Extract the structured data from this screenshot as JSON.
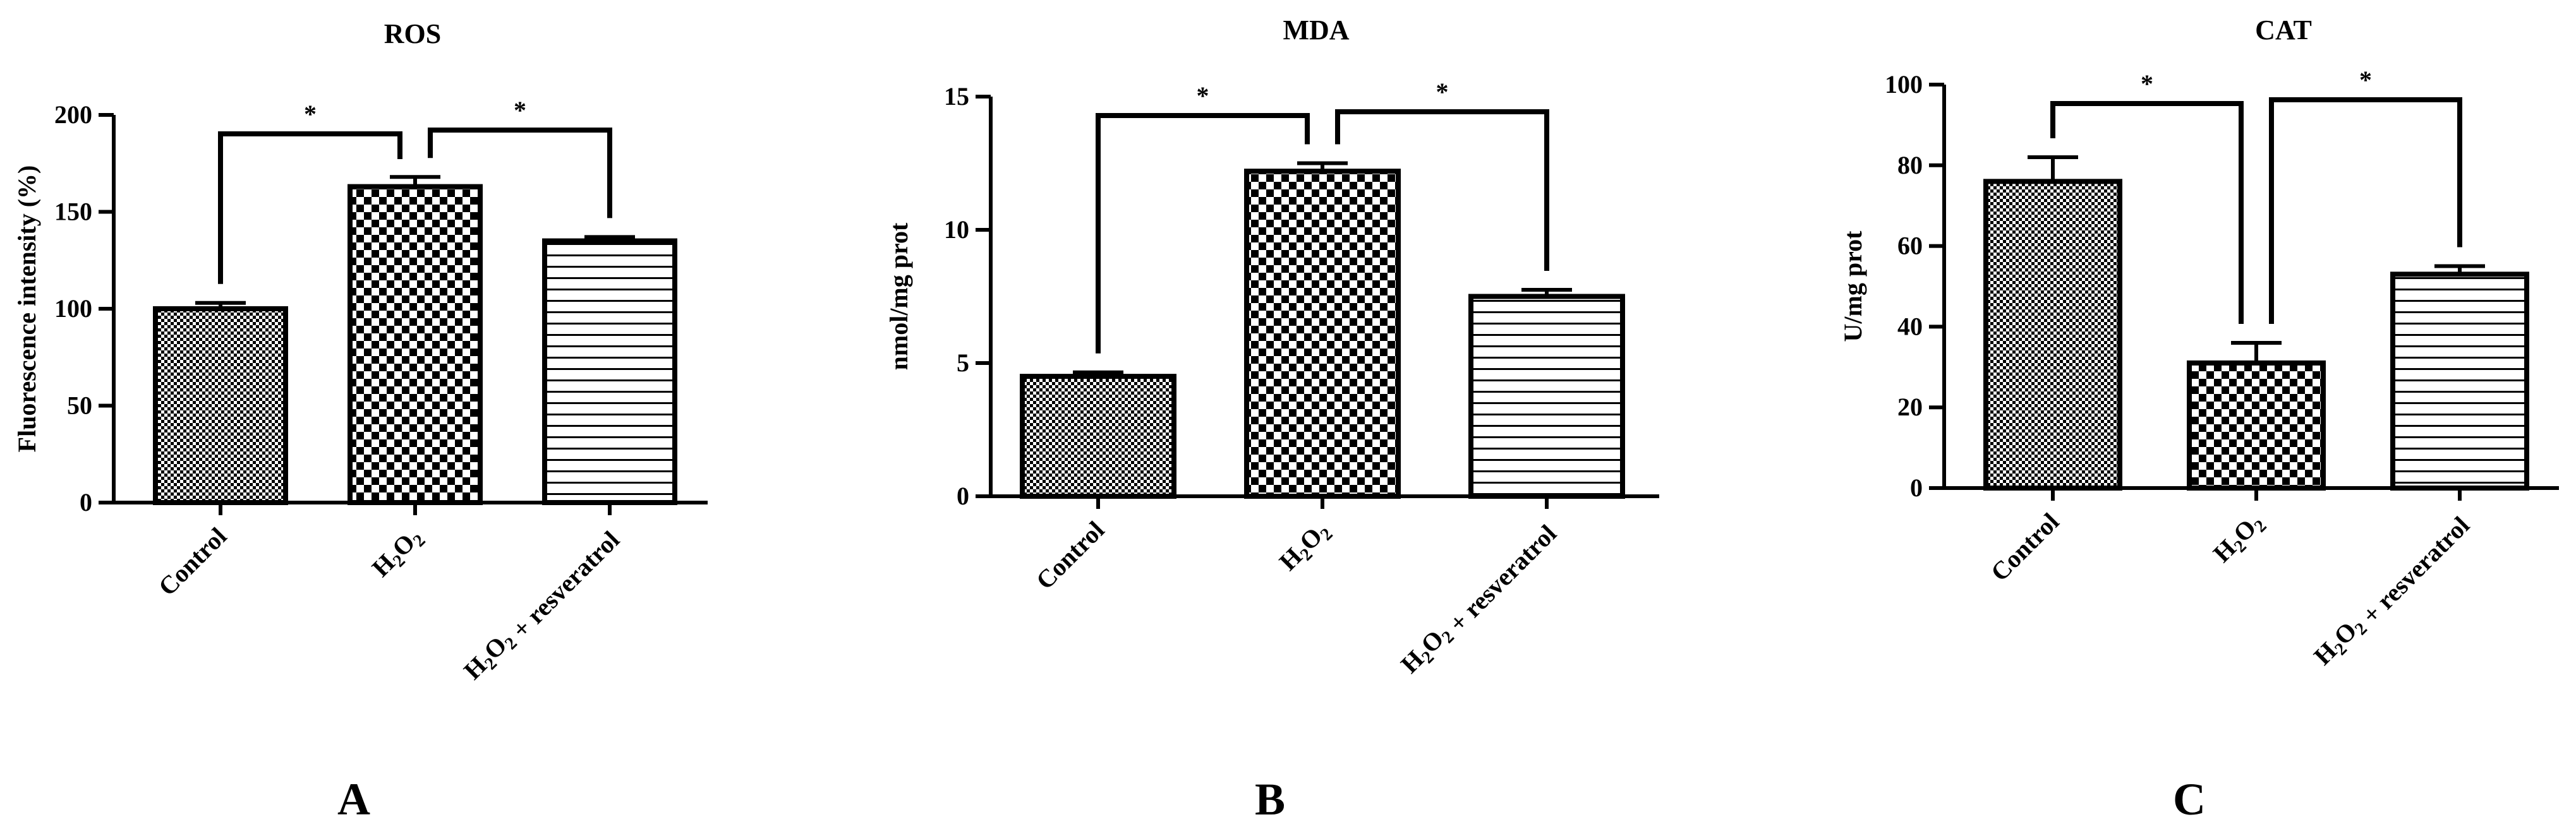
{
  "chart_data": [
    {
      "type": "bar",
      "panel_label": "A",
      "title": "ROS",
      "ylabel": "Fluorescence intensity (%)",
      "xlabel": "",
      "categories": [
        "Control",
        "H2O2",
        "H2O2 + resveratrol"
      ],
      "values": [
        100,
        163,
        135
      ],
      "errors": [
        3,
        5,
        2
      ],
      "ylim": [
        0,
        200
      ],
      "yticks": [
        0,
        50,
        100,
        150,
        200
      ],
      "patterns": [
        "fine-checker",
        "coarse-checker",
        "horizontal-lines"
      ],
      "significance": [
        {
          "from": 0,
          "to": 1,
          "label": "*"
        },
        {
          "from": 1,
          "to": 2,
          "label": "*"
        }
      ],
      "grid": false,
      "legend": "none"
    },
    {
      "type": "bar",
      "panel_label": "B",
      "title": "MDA",
      "ylabel": "nmol/mg prot",
      "xlabel": "",
      "categories": [
        "Control",
        "H2O2",
        "H2O2 + resveratrol"
      ],
      "values": [
        4.5,
        12.2,
        7.5
      ],
      "errors": [
        0.15,
        0.3,
        0.25
      ],
      "ylim": [
        0,
        15
      ],
      "yticks": [
        0,
        5,
        10,
        15
      ],
      "patterns": [
        "fine-checker",
        "coarse-checker",
        "horizontal-lines"
      ],
      "significance": [
        {
          "from": 0,
          "to": 1,
          "label": "*"
        },
        {
          "from": 1,
          "to": 2,
          "label": "*"
        }
      ],
      "grid": false,
      "legend": "none"
    },
    {
      "type": "bar",
      "panel_label": "C",
      "title": "CAT",
      "ylabel": "U/mg prot",
      "xlabel": "",
      "categories": [
        "Control",
        "H2O2",
        "H2O2 + resveratrol"
      ],
      "values": [
        76,
        31,
        53
      ],
      "errors": [
        6,
        5,
        2
      ],
      "ylim": [
        0,
        100
      ],
      "yticks": [
        0,
        20,
        40,
        60,
        80,
        100
      ],
      "patterns": [
        "fine-checker",
        "coarse-checker",
        "horizontal-lines"
      ],
      "significance": [
        {
          "from": 0,
          "to": 1,
          "label": "*"
        },
        {
          "from": 1,
          "to": 2,
          "label": "*"
        }
      ],
      "grid": false,
      "legend": "none"
    }
  ]
}
